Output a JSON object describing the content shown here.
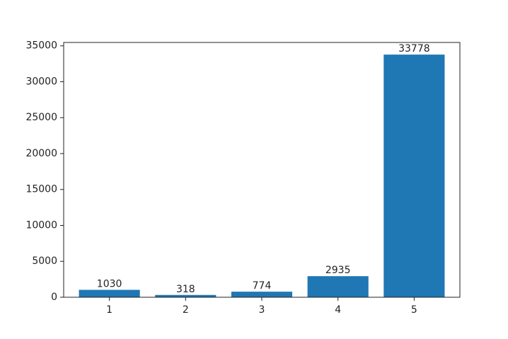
{
  "chart_data": {
    "type": "bar",
    "categories": [
      "1",
      "2",
      "3",
      "4",
      "5"
    ],
    "values": [
      1030,
      318,
      774,
      2935,
      33778
    ],
    "color": "#1f77b4",
    "ylim": [
      0,
      35467
    ],
    "yticks": [
      0,
      5000,
      10000,
      15000,
      20000,
      25000,
      30000,
      35000
    ],
    "grid": false,
    "data_labels": true
  }
}
